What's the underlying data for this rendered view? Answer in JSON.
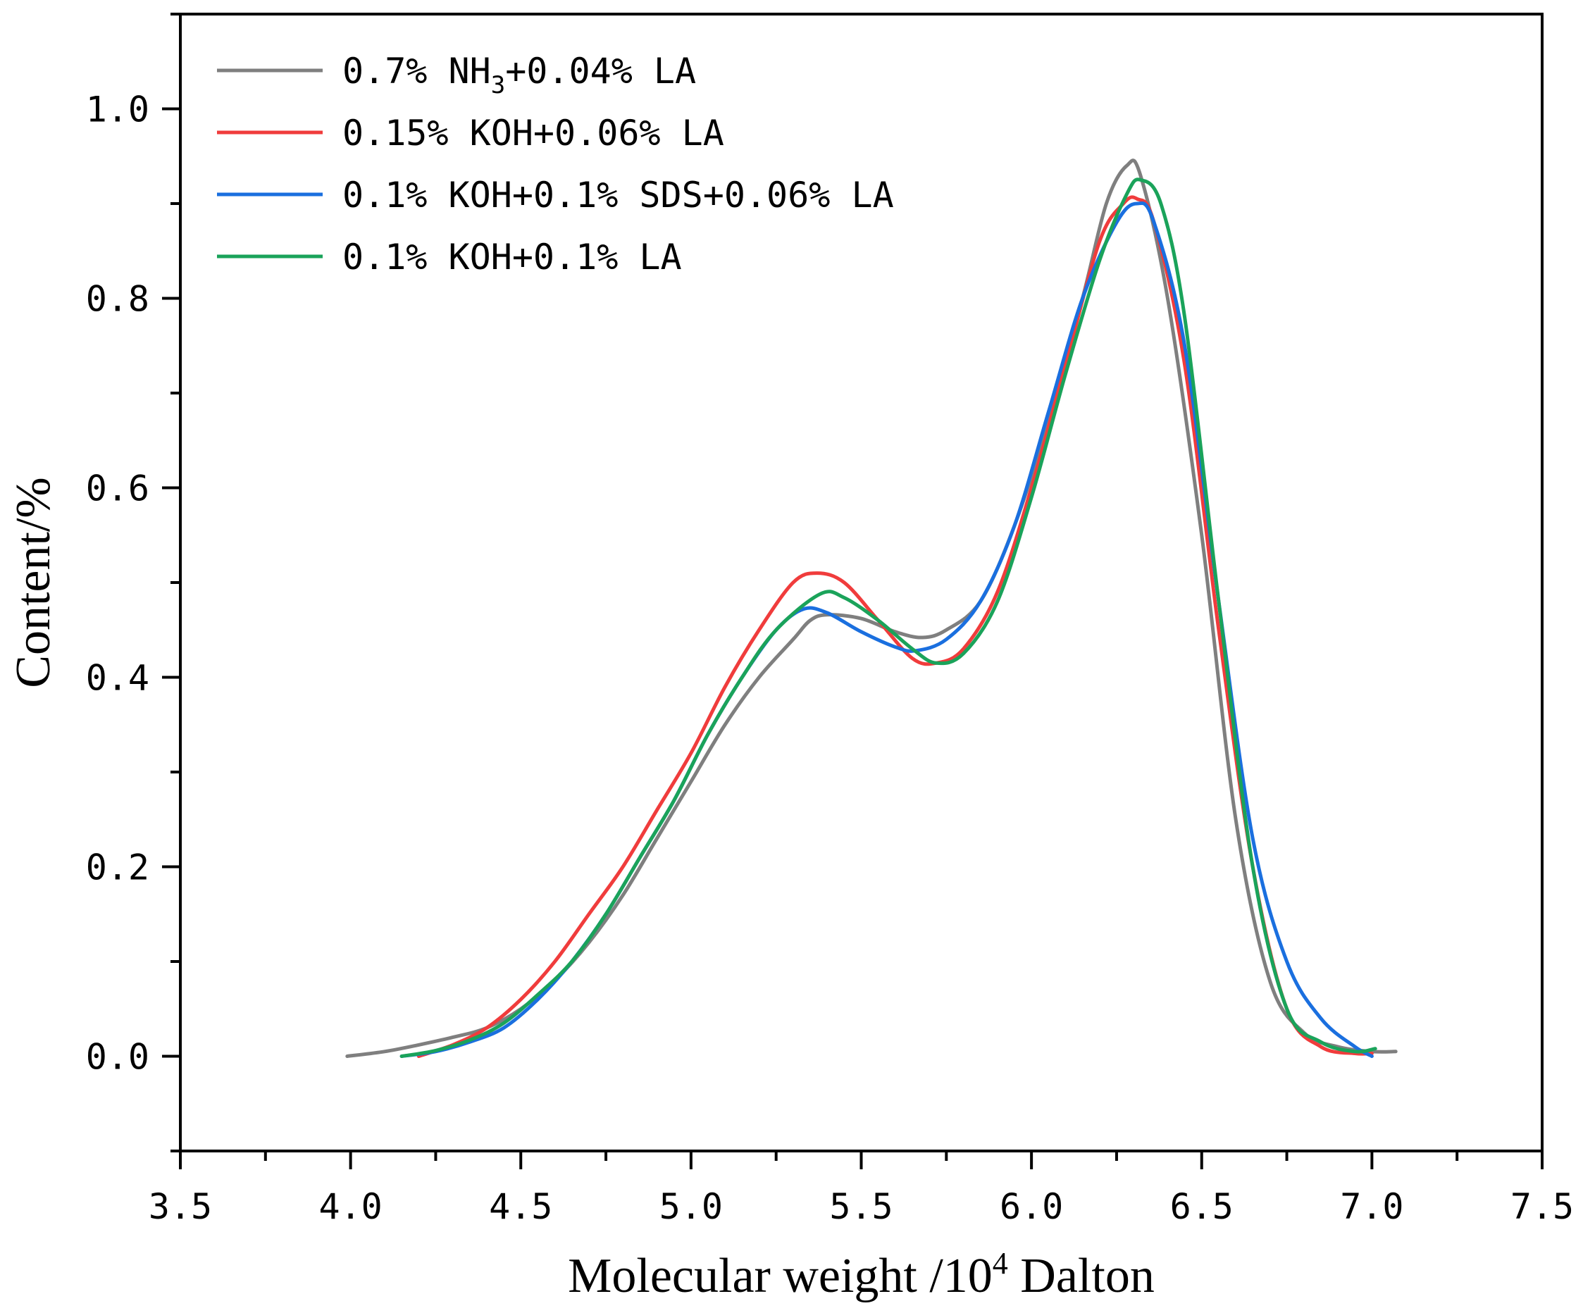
{
  "chart_data": {
    "type": "line",
    "title": "",
    "xlabel": "Molecular weight /10",
    "xlabel_superscript": "4",
    "xlabel_suffix": " Dalton",
    "ylabel": "Content/%",
    "xlim": [
      3.5,
      7.5
    ],
    "ylim": [
      -0.1,
      1.1
    ],
    "xticks": [
      3.5,
      4.0,
      4.5,
      5.0,
      5.5,
      6.0,
      6.5,
      7.0,
      7.5
    ],
    "xtick_labels": [
      "3.5",
      "4.0",
      "4.5",
      "5.0",
      "5.5",
      "6.0",
      "6.5",
      "7.0",
      "7.5"
    ],
    "yticks": [
      0.0,
      0.2,
      0.4,
      0.6,
      0.8,
      1.0
    ],
    "ytick_labels": [
      "0.0",
      "0.2",
      "0.4",
      "0.6",
      "0.8",
      "1.0"
    ],
    "grid": false,
    "legend_position": "top-left",
    "series": [
      {
        "name": "0.7% NH3+0.04% LA",
        "legend_parts": [
          "0.7% NH",
          "3",
          "+0.04% LA"
        ],
        "color": "#7f7f7f",
        "points": [
          [
            3.99,
            0.0
          ],
          [
            4.1,
            0.005
          ],
          [
            4.2,
            0.012
          ],
          [
            4.3,
            0.02
          ],
          [
            4.4,
            0.03
          ],
          [
            4.5,
            0.05
          ],
          [
            4.6,
            0.08
          ],
          [
            4.7,
            0.12
          ],
          [
            4.8,
            0.17
          ],
          [
            4.9,
            0.23
          ],
          [
            5.0,
            0.29
          ],
          [
            5.1,
            0.35
          ],
          [
            5.2,
            0.4
          ],
          [
            5.3,
            0.44
          ],
          [
            5.35,
            0.46
          ],
          [
            5.4,
            0.466
          ],
          [
            5.5,
            0.462
          ],
          [
            5.6,
            0.448
          ],
          [
            5.68,
            0.442
          ],
          [
            5.75,
            0.45
          ],
          [
            5.85,
            0.48
          ],
          [
            5.95,
            0.56
          ],
          [
            6.05,
            0.67
          ],
          [
            6.15,
            0.8
          ],
          [
            6.22,
            0.9
          ],
          [
            6.28,
            0.94
          ],
          [
            6.32,
            0.93
          ],
          [
            6.4,
            0.8
          ],
          [
            6.5,
            0.55
          ],
          [
            6.6,
            0.25
          ],
          [
            6.7,
            0.08
          ],
          [
            6.8,
            0.025
          ],
          [
            6.9,
            0.01
          ],
          [
            7.0,
            0.005
          ],
          [
            7.07,
            0.005
          ]
        ]
      },
      {
        "name": "0.15% KOH+0.06% LA",
        "legend_parts": [
          "0.15% KOH+0.06% LA"
        ],
        "color": "#f03c3c",
        "points": [
          [
            4.2,
            0.0
          ],
          [
            4.3,
            0.012
          ],
          [
            4.4,
            0.03
          ],
          [
            4.5,
            0.06
          ],
          [
            4.6,
            0.1
          ],
          [
            4.7,
            0.15
          ],
          [
            4.8,
            0.2
          ],
          [
            4.9,
            0.26
          ],
          [
            5.0,
            0.32
          ],
          [
            5.1,
            0.39
          ],
          [
            5.2,
            0.45
          ],
          [
            5.3,
            0.5
          ],
          [
            5.37,
            0.51
          ],
          [
            5.45,
            0.5
          ],
          [
            5.55,
            0.46
          ],
          [
            5.65,
            0.42
          ],
          [
            5.72,
            0.415
          ],
          [
            5.8,
            0.43
          ],
          [
            5.9,
            0.49
          ],
          [
            6.0,
            0.6
          ],
          [
            6.1,
            0.73
          ],
          [
            6.2,
            0.86
          ],
          [
            6.27,
            0.9
          ],
          [
            6.31,
            0.905
          ],
          [
            6.36,
            0.88
          ],
          [
            6.45,
            0.73
          ],
          [
            6.55,
            0.45
          ],
          [
            6.65,
            0.2
          ],
          [
            6.75,
            0.05
          ],
          [
            6.85,
            0.01
          ],
          [
            6.95,
            0.003
          ],
          [
            7.0,
            0.003
          ]
        ]
      },
      {
        "name": "0.1% KOH+0.1% SDS+0.06% LA",
        "legend_parts": [
          "0.1% KOH+0.1% SDS+0.06% LA"
        ],
        "color": "#1a6fdf",
        "points": [
          [
            4.15,
            0.0
          ],
          [
            4.25,
            0.005
          ],
          [
            4.35,
            0.015
          ],
          [
            4.45,
            0.03
          ],
          [
            4.55,
            0.06
          ],
          [
            4.65,
            0.1
          ],
          [
            4.75,
            0.15
          ],
          [
            4.85,
            0.21
          ],
          [
            4.95,
            0.27
          ],
          [
            5.05,
            0.34
          ],
          [
            5.15,
            0.4
          ],
          [
            5.25,
            0.45
          ],
          [
            5.33,
            0.472
          ],
          [
            5.4,
            0.468
          ],
          [
            5.5,
            0.448
          ],
          [
            5.6,
            0.432
          ],
          [
            5.66,
            0.428
          ],
          [
            5.75,
            0.44
          ],
          [
            5.85,
            0.48
          ],
          [
            5.95,
            0.56
          ],
          [
            6.05,
            0.68
          ],
          [
            6.15,
            0.8
          ],
          [
            6.25,
            0.88
          ],
          [
            6.31,
            0.9
          ],
          [
            6.36,
            0.88
          ],
          [
            6.45,
            0.75
          ],
          [
            6.55,
            0.48
          ],
          [
            6.65,
            0.23
          ],
          [
            6.75,
            0.1
          ],
          [
            6.85,
            0.04
          ],
          [
            6.95,
            0.01
          ],
          [
            7.0,
            0.0
          ]
        ]
      },
      {
        "name": "0.1% KOH+0.1% LA",
        "legend_parts": [
          "0.1% KOH+0.1% LA"
        ],
        "color": "#1aa35a",
        "points": [
          [
            4.15,
            0.0
          ],
          [
            4.25,
            0.006
          ],
          [
            4.35,
            0.017
          ],
          [
            4.45,
            0.035
          ],
          [
            4.55,
            0.065
          ],
          [
            4.65,
            0.1
          ],
          [
            4.75,
            0.15
          ],
          [
            4.85,
            0.21
          ],
          [
            4.95,
            0.27
          ],
          [
            5.05,
            0.34
          ],
          [
            5.15,
            0.4
          ],
          [
            5.25,
            0.45
          ],
          [
            5.38,
            0.488
          ],
          [
            5.45,
            0.484
          ],
          [
            5.55,
            0.46
          ],
          [
            5.65,
            0.43
          ],
          [
            5.72,
            0.415
          ],
          [
            5.8,
            0.425
          ],
          [
            5.9,
            0.48
          ],
          [
            6.0,
            0.59
          ],
          [
            6.1,
            0.72
          ],
          [
            6.2,
            0.84
          ],
          [
            6.28,
            0.91
          ],
          [
            6.32,
            0.925
          ],
          [
            6.38,
            0.9
          ],
          [
            6.45,
            0.78
          ],
          [
            6.55,
            0.48
          ],
          [
            6.65,
            0.2
          ],
          [
            6.75,
            0.05
          ],
          [
            6.85,
            0.015
          ],
          [
            6.95,
            0.005
          ],
          [
            7.01,
            0.008
          ]
        ]
      }
    ]
  }
}
